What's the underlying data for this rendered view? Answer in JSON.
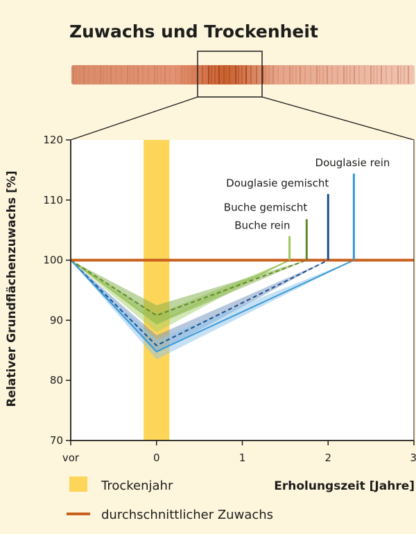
{
  "chart_data": {
    "type": "line",
    "title": "Zuwachs und Trockenheit",
    "ylabel": "Relativer Grundflächenzuwachs [%]",
    "xlabel": "Erholungszeit [Jahre]",
    "ylim": [
      70,
      120
    ],
    "yticks": [
      70,
      80,
      90,
      100,
      110,
      120
    ],
    "xlim": [
      -1,
      3
    ],
    "xticks": [
      {
        "x": -1,
        "label": "vor"
      },
      {
        "x": 0,
        "label": "0"
      },
      {
        "x": 1,
        "label": "1"
      },
      {
        "x": 2,
        "label": "2"
      },
      {
        "x": 3,
        "label": "3"
      }
    ],
    "grid": false,
    "drought_band": {
      "from": -0.15,
      "to": 0.15,
      "label": "Trockenjahr",
      "color": "#fdd558"
    },
    "reference": {
      "y": 100,
      "label": "durchschnittlicher Zuwachs",
      "color": "#c9601e"
    },
    "series": [
      {
        "name": "Buche rein",
        "color": "#9cc65c",
        "band_color": "#a7cf6c",
        "style": "solid",
        "x": [
          -1,
          0,
          1.55
        ],
        "y": [
          100,
          89.5,
          100
        ],
        "lower": [
          100,
          88.0,
          100
        ],
        "upper": [
          100,
          91.0,
          100
        ],
        "recovery": 1.55,
        "marker_top": 104,
        "label_y": 105.2
      },
      {
        "name": "Buche gemischt",
        "color": "#5f8a2c",
        "band_color": "#7fae45",
        "style": "dashed",
        "x": [
          -1,
          0,
          1.75
        ],
        "y": [
          100,
          90.8,
          100
        ],
        "lower": [
          100,
          89.3,
          100
        ],
        "upper": [
          100,
          92.5,
          100
        ],
        "recovery": 1.75,
        "marker_top": 106.8,
        "label_y": 108.2
      },
      {
        "name": "Douglasie gemischt",
        "color": "#1b4f8a",
        "band_color": "#6f8fbe",
        "style": "dashed",
        "x": [
          -1,
          0,
          2.0
        ],
        "y": [
          100,
          85.8,
          100
        ],
        "lower": [
          100,
          84.5,
          100
        ],
        "upper": [
          100,
          87.5,
          100
        ],
        "recovery": 2.0,
        "marker_top": 111,
        "label_y": 112.2
      },
      {
        "name": "Douglasie rein",
        "color": "#3a9ad8",
        "band_color": "#8ec4ec",
        "style": "solid",
        "x": [
          -1,
          0,
          2.3
        ],
        "y": [
          100,
          84.8,
          100
        ],
        "lower": [
          100,
          83.5,
          100
        ],
        "upper": [
          100,
          86.8,
          100
        ],
        "recovery": 2.3,
        "marker_top": 114.4,
        "label_y": 115.6
      }
    ]
  },
  "legend": {
    "drought": "Trockenjahr",
    "reference": "durchschnittlicher Zuwachs"
  }
}
